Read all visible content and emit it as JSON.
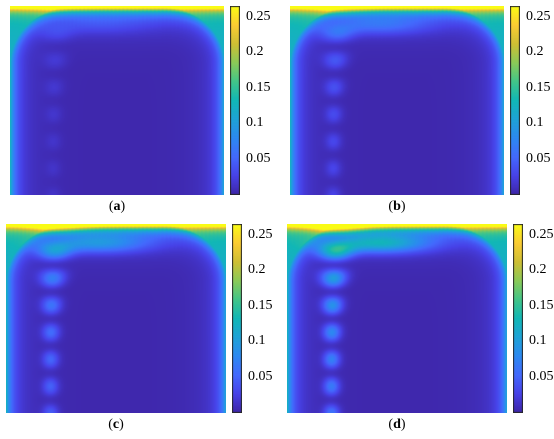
{
  "chart_data": [
    {
      "type": "heatmap",
      "label": "a",
      "colormap": "parula",
      "clim": [
        0,
        0.265
      ],
      "colorbar_ticks": [
        "0.05",
        "0.1",
        "0.15",
        "0.2",
        "0.25"
      ],
      "colorbar_values": [
        0.05,
        0.1,
        0.15,
        0.2,
        0.25
      ],
      "features": {
        "column_intensity": 0.02,
        "top_band": 0.26
      }
    },
    {
      "type": "heatmap",
      "label": "b",
      "colormap": "parula",
      "clim": [
        0,
        0.265
      ],
      "colorbar_ticks": [
        "0.05",
        "0.1",
        "0.15",
        "0.2",
        "0.25"
      ],
      "colorbar_values": [
        0.05,
        0.1,
        0.15,
        0.2,
        0.25
      ],
      "features": {
        "column_intensity": 0.05,
        "top_band": 0.26
      }
    },
    {
      "type": "heatmap",
      "label": "c",
      "colormap": "parula",
      "clim": [
        0,
        0.265
      ],
      "colorbar_ticks": [
        "0.05",
        "0.1",
        "0.15",
        "0.2",
        "0.25"
      ],
      "colorbar_values": [
        0.05,
        0.1,
        0.15,
        0.2,
        0.25
      ],
      "features": {
        "column_intensity": 0.09,
        "top_band": 0.26
      }
    },
    {
      "type": "heatmap",
      "label": "d",
      "colormap": "parula",
      "clim": [
        0,
        0.265
      ],
      "colorbar_ticks": [
        "0.05",
        "0.1",
        "0.15",
        "0.2",
        "0.25"
      ],
      "colorbar_values": [
        0.05,
        0.1,
        0.15,
        0.2,
        0.25
      ],
      "features": {
        "column_intensity": 0.13,
        "top_band": 0.26
      }
    }
  ],
  "captions": [
    {
      "open": "(",
      "letter": "a",
      "close": ")"
    },
    {
      "open": "(",
      "letter": "b",
      "close": ")"
    },
    {
      "open": "(",
      "letter": "c",
      "close": ")"
    },
    {
      "open": "(",
      "letter": "d",
      "close": ")"
    }
  ]
}
